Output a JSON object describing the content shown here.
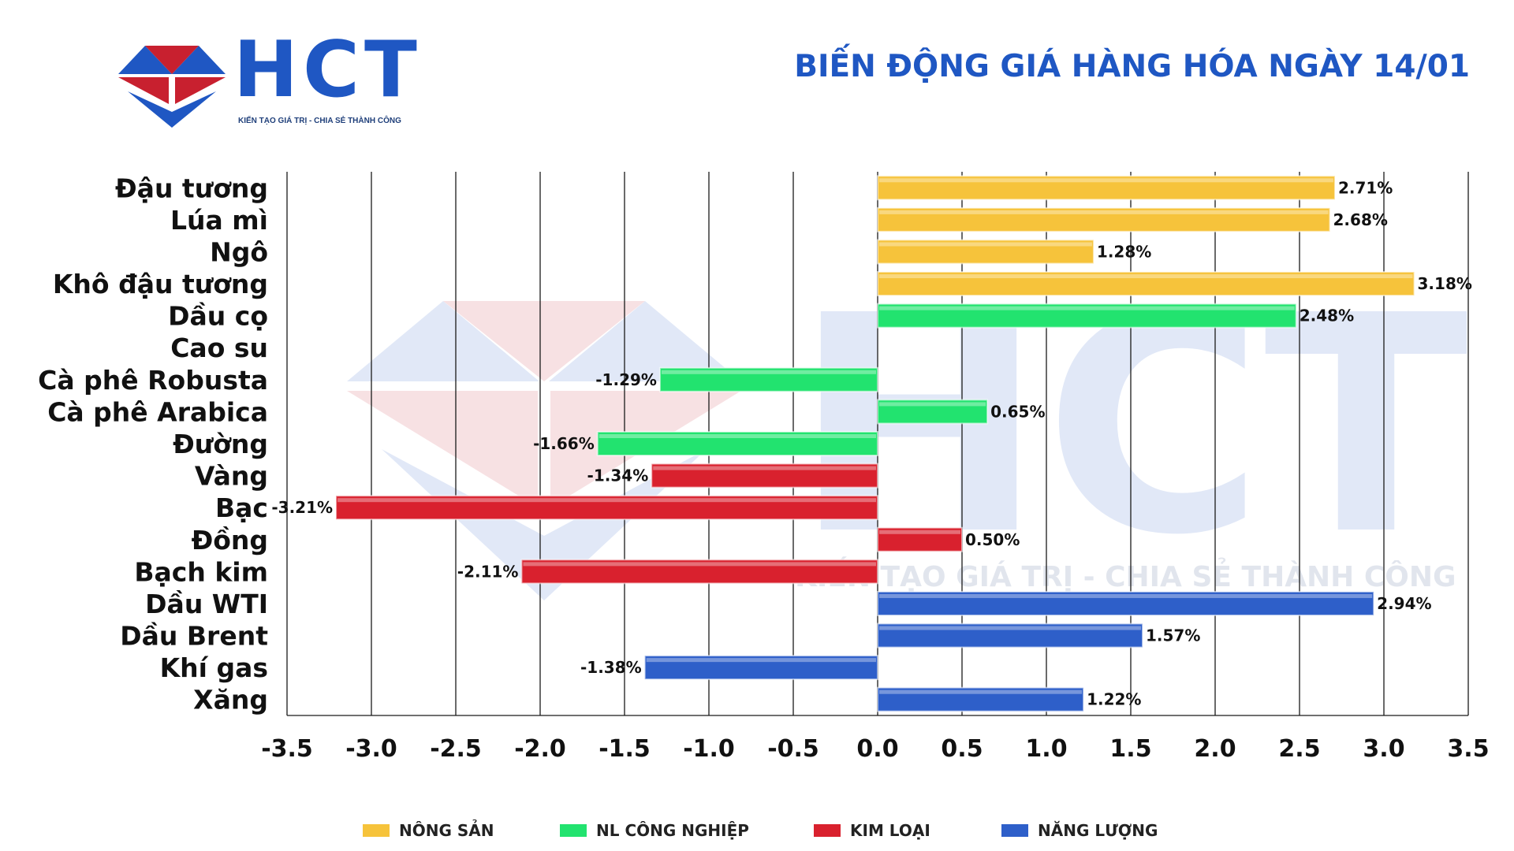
{
  "brand": {
    "name": "HCT",
    "tagline": "KIẾN TẠO GIÁ TRỊ - CHIA SẺ THÀNH CÔNG"
  },
  "colors": {
    "brand_blue": "#1f57c3",
    "brand_red": "#c8202f",
    "nong_san": "#f6c33b",
    "nl_cong_nghiep": "#22e36f",
    "kim_loai": "#d9212e",
    "nang_luong": "#2e5fc9"
  },
  "chart_data": {
    "type": "bar",
    "orientation": "horizontal",
    "title": "BIẾN ĐỘNG GIÁ HÀNG HÓA NGÀY 14/01",
    "xlabel": "",
    "ylabel": "",
    "xlim": [
      -3.5,
      3.5
    ],
    "xticks": [
      "-3.5",
      "-3.0",
      "-2.5",
      "-2.0",
      "-1.5",
      "-1.0",
      "-0.5",
      "0.0",
      "0.5",
      "1.0",
      "1.5",
      "2.0",
      "2.5",
      "3.0",
      "3.5"
    ],
    "grid": "vertical",
    "legend_position": "bottom",
    "legend": [
      {
        "key": "nong_san",
        "label": "NÔNG SẢN"
      },
      {
        "key": "nl_cong_nghiep",
        "label": "NL CÔNG NGHIỆP"
      },
      {
        "key": "kim_loai",
        "label": "KIM LOẠI"
      },
      {
        "key": "nang_luong",
        "label": "NĂNG LƯỢNG"
      }
    ],
    "bars": [
      {
        "category": "Đậu tương",
        "value": 2.71,
        "label": "2.71%",
        "group": "nong_san"
      },
      {
        "category": "Lúa mì",
        "value": 2.68,
        "label": "2.68%",
        "group": "nong_san"
      },
      {
        "category": "Ngô",
        "value": 1.28,
        "label": "1.28%",
        "group": "nong_san"
      },
      {
        "category": "Khô đậu tương",
        "value": 3.18,
        "label": "3.18%",
        "group": "nong_san"
      },
      {
        "category": "Dầu cọ",
        "value": 2.48,
        "label": "2.48%",
        "group": "nl_cong_nghiep"
      },
      {
        "category": "Cao su",
        "value": null,
        "label": "",
        "group": "nl_cong_nghiep"
      },
      {
        "category": "Cà phê Robusta",
        "value": -1.29,
        "label": "-1.29%",
        "group": "nl_cong_nghiep"
      },
      {
        "category": "Cà phê Arabica",
        "value": 0.65,
        "label": "0.65%",
        "group": "nl_cong_nghiep"
      },
      {
        "category": "Đường",
        "value": -1.66,
        "label": "-1.66%",
        "group": "nl_cong_nghiep"
      },
      {
        "category": "Vàng",
        "value": -1.34,
        "label": "-1.34%",
        "group": "kim_loai"
      },
      {
        "category": "Bạc",
        "value": -3.21,
        "label": "-3.21%",
        "group": "kim_loai"
      },
      {
        "category": "Đồng",
        "value": 0.5,
        "label": "0.50%",
        "group": "kim_loai"
      },
      {
        "category": "Bạch kim",
        "value": -2.11,
        "label": "-2.11%",
        "group": "kim_loai"
      },
      {
        "category": "Dầu WTI",
        "value": 2.94,
        "label": "2.94%",
        "group": "nang_luong"
      },
      {
        "category": "Dầu Brent",
        "value": 1.57,
        "label": "1.57%",
        "group": "nang_luong"
      },
      {
        "category": "Khí gas",
        "value": -1.38,
        "label": "-1.38%",
        "group": "nang_luong"
      },
      {
        "category": "Xăng",
        "value": 1.22,
        "label": "1.22%",
        "group": "nang_luong"
      }
    ]
  }
}
